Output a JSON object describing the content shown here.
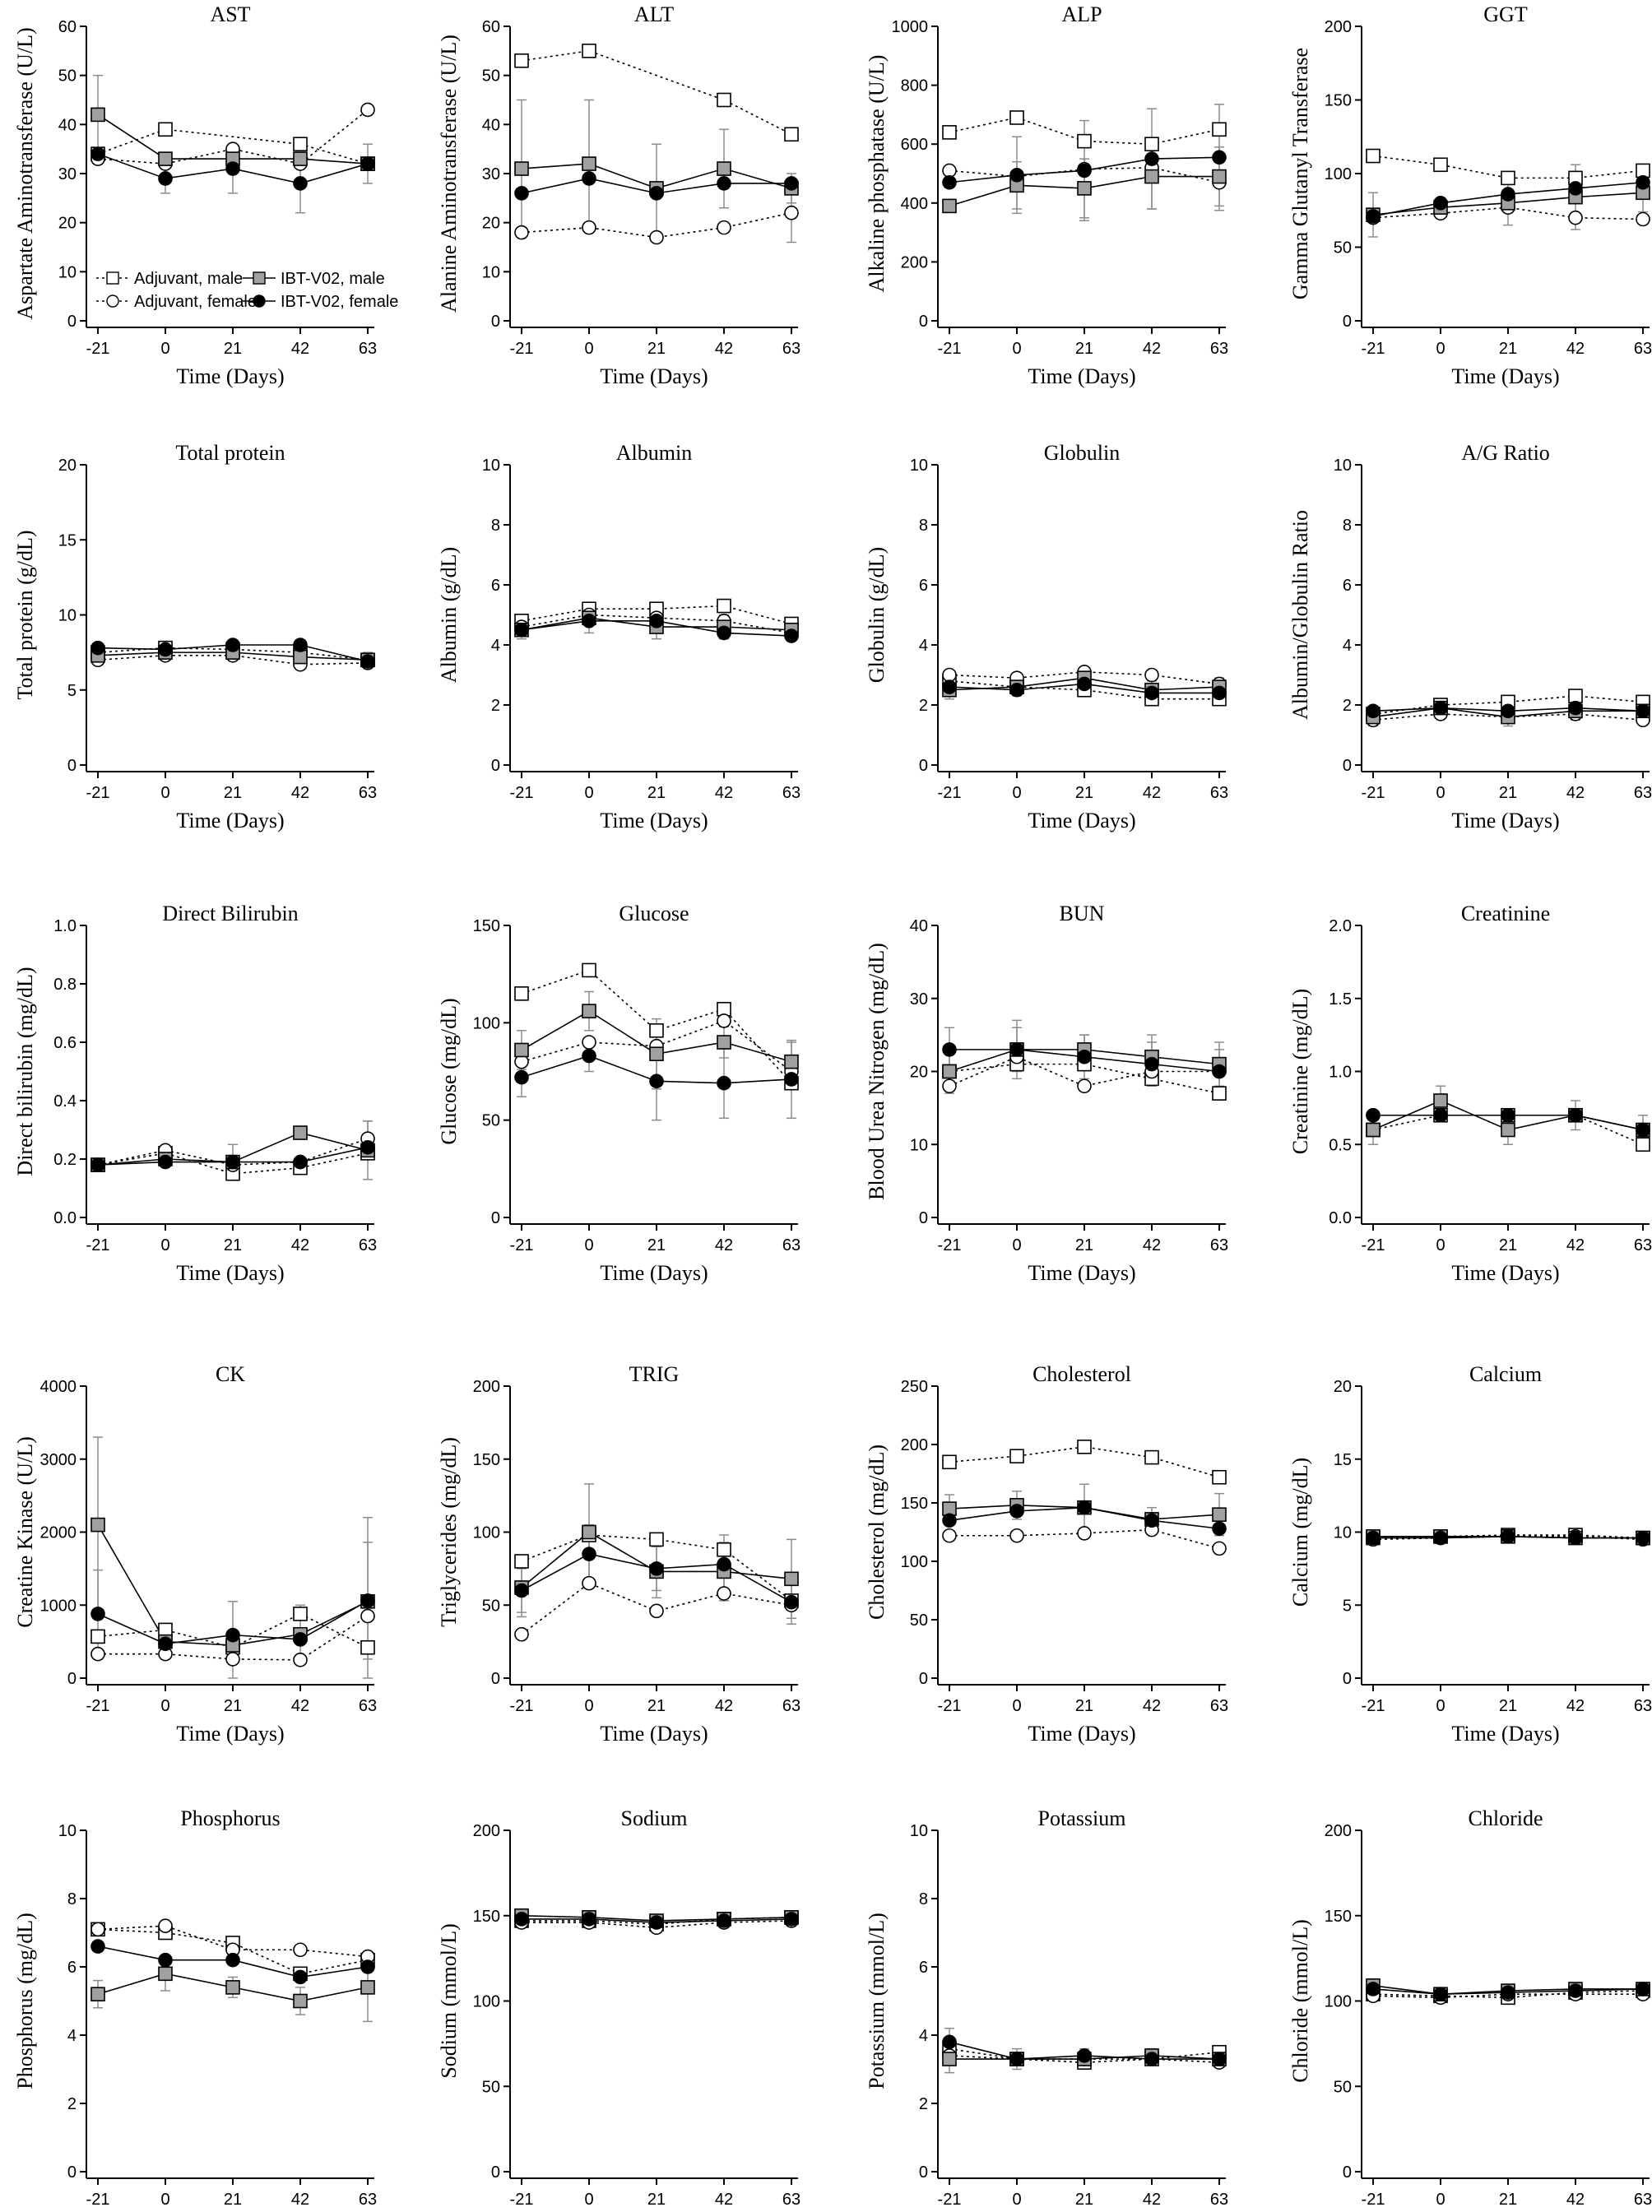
{
  "figure": {
    "x_ticks": [
      "-21",
      "0",
      "21",
      "42",
      "63"
    ]
  },
  "series": [
    {
      "key": "am",
      "name": "Adjuvant, male",
      "marker": "square",
      "fill": "#ffffff",
      "dash": true
    },
    {
      "key": "af",
      "name": "Adjuvant, female",
      "marker": "circle",
      "fill": "#ffffff",
      "dash": true
    },
    {
      "key": "im",
      "name": "IBT-V02, male",
      "marker": "square",
      "fill": "#a0a0a0",
      "dash": false
    },
    {
      "key": "if",
      "name": "IBT-V02, female",
      "marker": "circle",
      "fill": "#000000",
      "dash": false
    }
  ],
  "colors": {
    "ink": "#000000",
    "error_bar": "#8c8c8c",
    "ibt_male_fill": "#a0a0a0"
  },
  "chart_data": [
    {
      "type": "line",
      "title": "AST",
      "ylabel": "Aspartate Aminotransferase (U/L)",
      "xlabel": "Time (Days)",
      "x": [
        -21,
        0,
        21,
        42,
        63
      ],
      "ylim": [
        0,
        60
      ],
      "yticks": [
        0,
        10,
        20,
        30,
        40,
        50,
        60
      ],
      "legend": true,
      "series": {
        "am": [
          34,
          39,
          null,
          36,
          32
        ],
        "af": [
          33,
          32,
          35,
          32,
          43
        ],
        "im": [
          42,
          33,
          33,
          33,
          32
        ],
        "if": [
          34,
          29,
          31,
          28,
          32
        ]
      },
      "errors": {
        "im": [
          8,
          null,
          null,
          null,
          null
        ],
        "if": [
          null,
          3,
          5,
          6,
          4
        ]
      }
    },
    {
      "type": "line",
      "title": "ALT",
      "ylabel": "Alanine Aminotransferase (U/L)",
      "xlabel": "Time (Days)",
      "x": [
        -21,
        0,
        21,
        42,
        63
      ],
      "ylim": [
        0,
        60
      ],
      "yticks": [
        0,
        10,
        20,
        30,
        40,
        50,
        60
      ],
      "series": {
        "am": [
          53,
          55,
          null,
          45,
          38
        ],
        "af": [
          18,
          19,
          17,
          19,
          22
        ],
        "im": [
          31,
          32,
          27,
          31,
          27
        ],
        "if": [
          26,
          29,
          26,
          28,
          28
        ]
      },
      "errors": {
        "im": [
          14,
          13,
          9,
          8,
          3
        ],
        "af": [
          null,
          null,
          null,
          null,
          6
        ]
      }
    },
    {
      "type": "line",
      "title": "ALP",
      "ylabel": "Alkaline phosphatase (U/L)",
      "xlabel": "Time (Days)",
      "x": [
        -21,
        0,
        21,
        42,
        63
      ],
      "ylim": [
        0,
        1000
      ],
      "yticks": [
        0,
        200,
        400,
        600,
        800,
        1000
      ],
      "series": {
        "am": [
          640,
          690,
          610,
          600,
          650
        ],
        "af": [
          510,
          490,
          515,
          520,
          470
        ],
        "im": [
          390,
          460,
          450,
          490,
          490
        ],
        "if": [
          470,
          495,
          510,
          550,
          555
        ]
      },
      "errors": {
        "im": [
          null,
          80,
          100,
          110,
          100
        ],
        "if": [
          null,
          130,
          170,
          170,
          180
        ]
      }
    },
    {
      "type": "line",
      "title": "GGT",
      "ylabel": "Gamma Glutanyl Transferase",
      "xlabel": "Time (Days)",
      "x": [
        -21,
        0,
        21,
        42,
        63
      ],
      "ylim": [
        0,
        200
      ],
      "yticks": [
        0,
        50,
        100,
        150,
        200
      ],
      "series": {
        "am": [
          112,
          106,
          97,
          97,
          102
        ],
        "af": [
          70,
          73,
          77,
          70,
          69
        ],
        "im": [
          72,
          77,
          80,
          84,
          87
        ],
        "if": [
          71,
          80,
          86,
          90,
          94
        ]
      },
      "errors": {
        "im": [
          15,
          null,
          15,
          22,
          13
        ]
      }
    },
    {
      "type": "line",
      "title": "Total protein",
      "ylabel": "Total protein (g/dL)",
      "xlabel": "Time (Days)",
      "x": [
        -21,
        0,
        21,
        42,
        63
      ],
      "ylim": [
        0,
        20
      ],
      "yticks": [
        0,
        5,
        10,
        15,
        20
      ],
      "series": {
        "am": [
          7.5,
          7.8,
          7.7,
          7.5,
          7.0
        ],
        "af": [
          7.0,
          7.3,
          7.3,
          6.7,
          6.8
        ],
        "im": [
          7.3,
          7.5,
          7.5,
          7.2,
          7.0
        ],
        "if": [
          7.8,
          7.7,
          8.0,
          8.0,
          6.9
        ]
      },
      "errors": {
        "im": [
          0.5,
          0.4,
          0.5,
          0.6,
          0.5
        ]
      }
    },
    {
      "type": "line",
      "title": "Albumin",
      "ylabel": "Albumin (g/dL)",
      "xlabel": "Time (Days)",
      "x": [
        -21,
        0,
        21,
        42,
        63
      ],
      "ylim": [
        0,
        10
      ],
      "yticks": [
        0,
        2,
        4,
        6,
        8,
        10
      ],
      "series": {
        "am": [
          4.8,
          5.2,
          5.2,
          5.3,
          4.7
        ],
        "af": [
          4.6,
          5.0,
          4.9,
          4.8,
          4.4
        ],
        "im": [
          4.5,
          4.9,
          4.6,
          4.6,
          4.5
        ],
        "if": [
          4.5,
          4.8,
          4.8,
          4.4,
          4.3
        ]
      },
      "errors": {
        "im": [
          0.3,
          0.5,
          0.4,
          0.4,
          0.3
        ]
      }
    },
    {
      "type": "line",
      "title": "Globulin",
      "ylabel": "Globulin (g/dL)",
      "xlabel": "Time (Days)",
      "x": [
        -21,
        0,
        21,
        42,
        63
      ],
      "ylim": [
        0,
        10
      ],
      "yticks": [
        0,
        2,
        4,
        6,
        8,
        10
      ],
      "series": {
        "am": [
          2.8,
          2.6,
          2.5,
          2.2,
          2.2
        ],
        "af": [
          3.0,
          2.9,
          3.1,
          3.0,
          2.7
        ],
        "im": [
          2.5,
          2.6,
          2.9,
          2.5,
          2.6
        ],
        "if": [
          2.6,
          2.5,
          2.7,
          2.4,
          2.4
        ]
      },
      "errors": {
        "im": [
          0.3,
          0.3,
          0.3,
          0.3,
          0.3
        ]
      }
    },
    {
      "type": "line",
      "title": "A/G Ratio",
      "ylabel": "Albumin/Globulin Ratio",
      "xlabel": "Time (Days)",
      "x": [
        -21,
        0,
        21,
        42,
        63
      ],
      "ylim": [
        0,
        10
      ],
      "yticks": [
        0,
        2,
        4,
        6,
        8,
        10
      ],
      "series": {
        "am": [
          1.7,
          2.0,
          2.1,
          2.3,
          2.1
        ],
        "af": [
          1.5,
          1.7,
          1.6,
          1.7,
          1.5
        ],
        "im": [
          1.6,
          1.9,
          1.6,
          1.8,
          1.8
        ],
        "if": [
          1.8,
          1.9,
          1.8,
          1.9,
          1.8
        ]
      },
      "errors": {
        "im": [
          0.3,
          0.3,
          0.3,
          0.3,
          0.3
        ]
      }
    },
    {
      "type": "line",
      "title": "Direct Bilirubin",
      "ylabel": "Direct bilirubin (mg/dL)",
      "xlabel": "Time (Days)",
      "x": [
        -21,
        0,
        21,
        42,
        63
      ],
      "ylim": [
        0,
        1.0
      ],
      "yticks": [
        0.0,
        0.2,
        0.4,
        0.6,
        0.8,
        1.0
      ],
      "series": {
        "am": [
          0.18,
          0.22,
          0.15,
          0.17,
          0.22
        ],
        "af": [
          0.18,
          0.23,
          0.18,
          0.19,
          0.27
        ],
        "im": [
          0.18,
          0.2,
          0.19,
          0.29,
          0.23
        ],
        "if": [
          0.18,
          0.19,
          0.19,
          0.19,
          0.24
        ]
      },
      "errors": {
        "im": [
          null,
          null,
          0.06,
          null,
          0.1
        ],
        "af": [
          null,
          null,
          null,
          null,
          0.06
        ]
      }
    },
    {
      "type": "line",
      "title": "Glucose",
      "ylabel": "Glucose (mg/dL)",
      "xlabel": "Time (Days)",
      "x": [
        -21,
        0,
        21,
        42,
        63
      ],
      "ylim": [
        0,
        150
      ],
      "yticks": [
        0,
        50,
        100,
        150
      ],
      "series": {
        "am": [
          115,
          127,
          96,
          107,
          69
        ],
        "af": [
          80,
          90,
          88,
          101,
          75
        ],
        "im": [
          86,
          106,
          84,
          90,
          80
        ],
        "if": [
          72,
          83,
          70,
          69,
          71
        ]
      },
      "errors": {
        "im": [
          10,
          10,
          18,
          8,
          10
        ],
        "if": [
          10,
          8,
          20,
          18,
          20
        ]
      }
    },
    {
      "type": "line",
      "title": "BUN",
      "ylabel": "Blood Urea Nitrogen (mg/dL)",
      "xlabel": "Time (Days)",
      "x": [
        -21,
        0,
        21,
        42,
        63
      ],
      "ylim": [
        0,
        40
      ],
      "yticks": [
        0,
        10,
        20,
        30,
        40
      ],
      "series": {
        "am": [
          20,
          21,
          21,
          19,
          17
        ],
        "af": [
          18,
          22,
          18,
          20,
          20
        ],
        "im": [
          20,
          23,
          23,
          22,
          21
        ],
        "if": [
          23,
          23,
          22,
          21,
          20
        ]
      },
      "errors": {
        "im": [
          3,
          4,
          2,
          3,
          3
        ],
        "if": [
          3,
          3,
          3,
          3,
          3
        ]
      }
    },
    {
      "type": "line",
      "title": "Creatinine",
      "ylabel": "Creatinine (mg/dL)",
      "xlabel": "Time (Days)",
      "x": [
        -21,
        0,
        21,
        42,
        63
      ],
      "ylim": [
        0,
        2.0
      ],
      "yticks": [
        0.0,
        0.5,
        1.0,
        1.5,
        2.0
      ],
      "series": {
        "am": [
          0.6,
          0.7,
          0.7,
          0.7,
          0.5
        ],
        "af": [
          0.7,
          0.7,
          0.7,
          0.7,
          0.6
        ],
        "im": [
          0.6,
          0.8,
          0.6,
          0.7,
          0.6
        ],
        "if": [
          0.7,
          0.7,
          0.7,
          0.7,
          0.6
        ]
      },
      "errors": {
        "im": [
          0.1,
          0.1,
          0.1,
          0.1,
          0.1
        ]
      }
    },
    {
      "type": "line",
      "title": "CK",
      "ylabel": "Creatine Kinase (U/L)",
      "xlabel": "Time (Days)",
      "x": [
        -21,
        0,
        21,
        42,
        63
      ],
      "ylim": [
        0,
        4000
      ],
      "yticks": [
        0,
        1000,
        2000,
        3000,
        4000
      ],
      "series": {
        "am": [
          570,
          660,
          420,
          880,
          420
        ],
        "af": [
          330,
          330,
          260,
          250,
          850
        ],
        "im": [
          2100,
          500,
          450,
          600,
          1050
        ],
        "if": [
          880,
          470,
          590,
          530,
          1060
        ]
      },
      "errors": {
        "im": [
          1200,
          null,
          600,
          400,
          1150
        ],
        "if": [
          600,
          null,
          null,
          null,
          800
        ]
      }
    },
    {
      "type": "line",
      "title": "TRIG",
      "ylabel": "Triglycerides (mg/dL)",
      "xlabel": "Time (Days)",
      "x": [
        -21,
        0,
        21,
        42,
        63
      ],
      "ylim": [
        0,
        200
      ],
      "yticks": [
        0,
        50,
        100,
        150,
        200
      ],
      "series": {
        "am": [
          80,
          98,
          95,
          88,
          53
        ],
        "af": [
          30,
          65,
          46,
          58,
          50
        ],
        "im": [
          62,
          100,
          73,
          73,
          68
        ],
        "if": [
          60,
          85,
          75,
          78,
          52
        ]
      },
      "errors": {
        "im": [
          20,
          33,
          18,
          20,
          27
        ],
        "if": [
          15,
          20,
          15,
          20,
          15
        ]
      }
    },
    {
      "type": "line",
      "title": "Cholesterol",
      "ylabel": "Cholesterol (mg/dL)",
      "xlabel": "Time (Days)",
      "x": [
        -21,
        0,
        21,
        42,
        63
      ],
      "ylim": [
        0,
        250
      ],
      "yticks": [
        0,
        50,
        100,
        150,
        200,
        250
      ],
      "series": {
        "am": [
          185,
          190,
          198,
          189,
          172
        ],
        "af": [
          122,
          122,
          124,
          127,
          111
        ],
        "im": [
          145,
          148,
          146,
          136,
          140
        ],
        "if": [
          135,
          143,
          146,
          135,
          128
        ]
      },
      "errors": {
        "im": [
          12,
          12,
          20,
          10,
          18
        ]
      }
    },
    {
      "type": "line",
      "title": "Calcium",
      "ylabel": "Calcium (mg/dL)",
      "xlabel": "Time (Days)",
      "x": [
        -21,
        0,
        21,
        42,
        63
      ],
      "ylim": [
        0,
        20
      ],
      "yticks": [
        0,
        5,
        10,
        15,
        20
      ],
      "series": {
        "am": [
          9.6,
          9.7,
          9.8,
          9.8,
          9.6
        ],
        "af": [
          9.5,
          9.6,
          9.7,
          9.7,
          9.5
        ],
        "im": [
          9.7,
          9.7,
          9.7,
          9.6,
          9.6
        ],
        "if": [
          9.6,
          9.6,
          9.7,
          9.6,
          9.6
        ]
      },
      "errors": {
        "im": [
          0.3,
          0.3,
          0.3,
          0.3,
          0.3
        ]
      }
    },
    {
      "type": "line",
      "title": "Phosphorus",
      "ylabel": "Phosphorus (mg/dL)",
      "xlabel": "Time (Days)",
      "x": [
        -21,
        0,
        21,
        42,
        63
      ],
      "ylim": [
        0,
        10
      ],
      "yticks": [
        0,
        2,
        4,
        6,
        8,
        10
      ],
      "series": {
        "am": [
          7.1,
          7.0,
          6.7,
          5.8,
          6.2
        ],
        "af": [
          7.1,
          7.2,
          6.5,
          6.5,
          6.3
        ],
        "im": [
          5.2,
          5.8,
          5.4,
          5.0,
          5.4
        ],
        "if": [
          6.6,
          6.2,
          6.2,
          5.7,
          6.0
        ]
      },
      "errors": {
        "im": [
          0.4,
          0.5,
          0.3,
          0.4,
          1.0
        ]
      }
    },
    {
      "type": "line",
      "title": "Sodium",
      "ylabel": "Sodium (mmol/L)",
      "xlabel": "Time (Days)",
      "x": [
        -21,
        0,
        21,
        42,
        63
      ],
      "ylim": [
        0,
        200
      ],
      "yticks": [
        0,
        50,
        100,
        150,
        200
      ],
      "series": {
        "am": [
          147,
          147,
          145,
          148,
          149
        ],
        "af": [
          146,
          146,
          143,
          146,
          147
        ],
        "im": [
          150,
          149,
          147,
          148,
          149
        ],
        "if": [
          148,
          148,
          146,
          147,
          148
        ]
      },
      "errors": {
        "im": [
          3,
          3,
          3,
          3,
          3
        ]
      }
    },
    {
      "type": "line",
      "title": "Potassium",
      "ylabel": "Potassium (mmol/L)",
      "xlabel": "Time (Days)",
      "x": [
        -21,
        0,
        21,
        42,
        63
      ],
      "ylim": [
        0,
        10
      ],
      "yticks": [
        0,
        2,
        4,
        6,
        8,
        10
      ],
      "series": {
        "am": [
          3.6,
          3.3,
          3.2,
          3.3,
          3.5
        ],
        "af": [
          3.4,
          3.3,
          3.3,
          3.3,
          3.2
        ],
        "im": [
          3.3,
          3.3,
          3.3,
          3.4,
          3.3
        ],
        "if": [
          3.8,
          3.3,
          3.4,
          3.3,
          3.3
        ]
      },
      "errors": {
        "im": [
          0.4,
          0.3,
          0.3,
          0.2,
          0.2
        ],
        "if": [
          0.4,
          null,
          null,
          null,
          null
        ]
      }
    },
    {
      "type": "line",
      "title": "Chloride",
      "ylabel": "Chloride (mmol/L)",
      "xlabel": "Time (Days)",
      "x": [
        -21,
        0,
        21,
        42,
        63
      ],
      "ylim": [
        0,
        200
      ],
      "yticks": [
        0,
        50,
        100,
        150,
        200
      ],
      "series": {
        "am": [
          104,
          103,
          102,
          105,
          106
        ],
        "af": [
          103,
          102,
          104,
          104,
          104
        ],
        "im": [
          109,
          104,
          106,
          107,
          107
        ],
        "if": [
          107,
          104,
          105,
          106,
          107
        ]
      },
      "errors": {
        "im": [
          3,
          3,
          3,
          3,
          3
        ]
      }
    }
  ]
}
